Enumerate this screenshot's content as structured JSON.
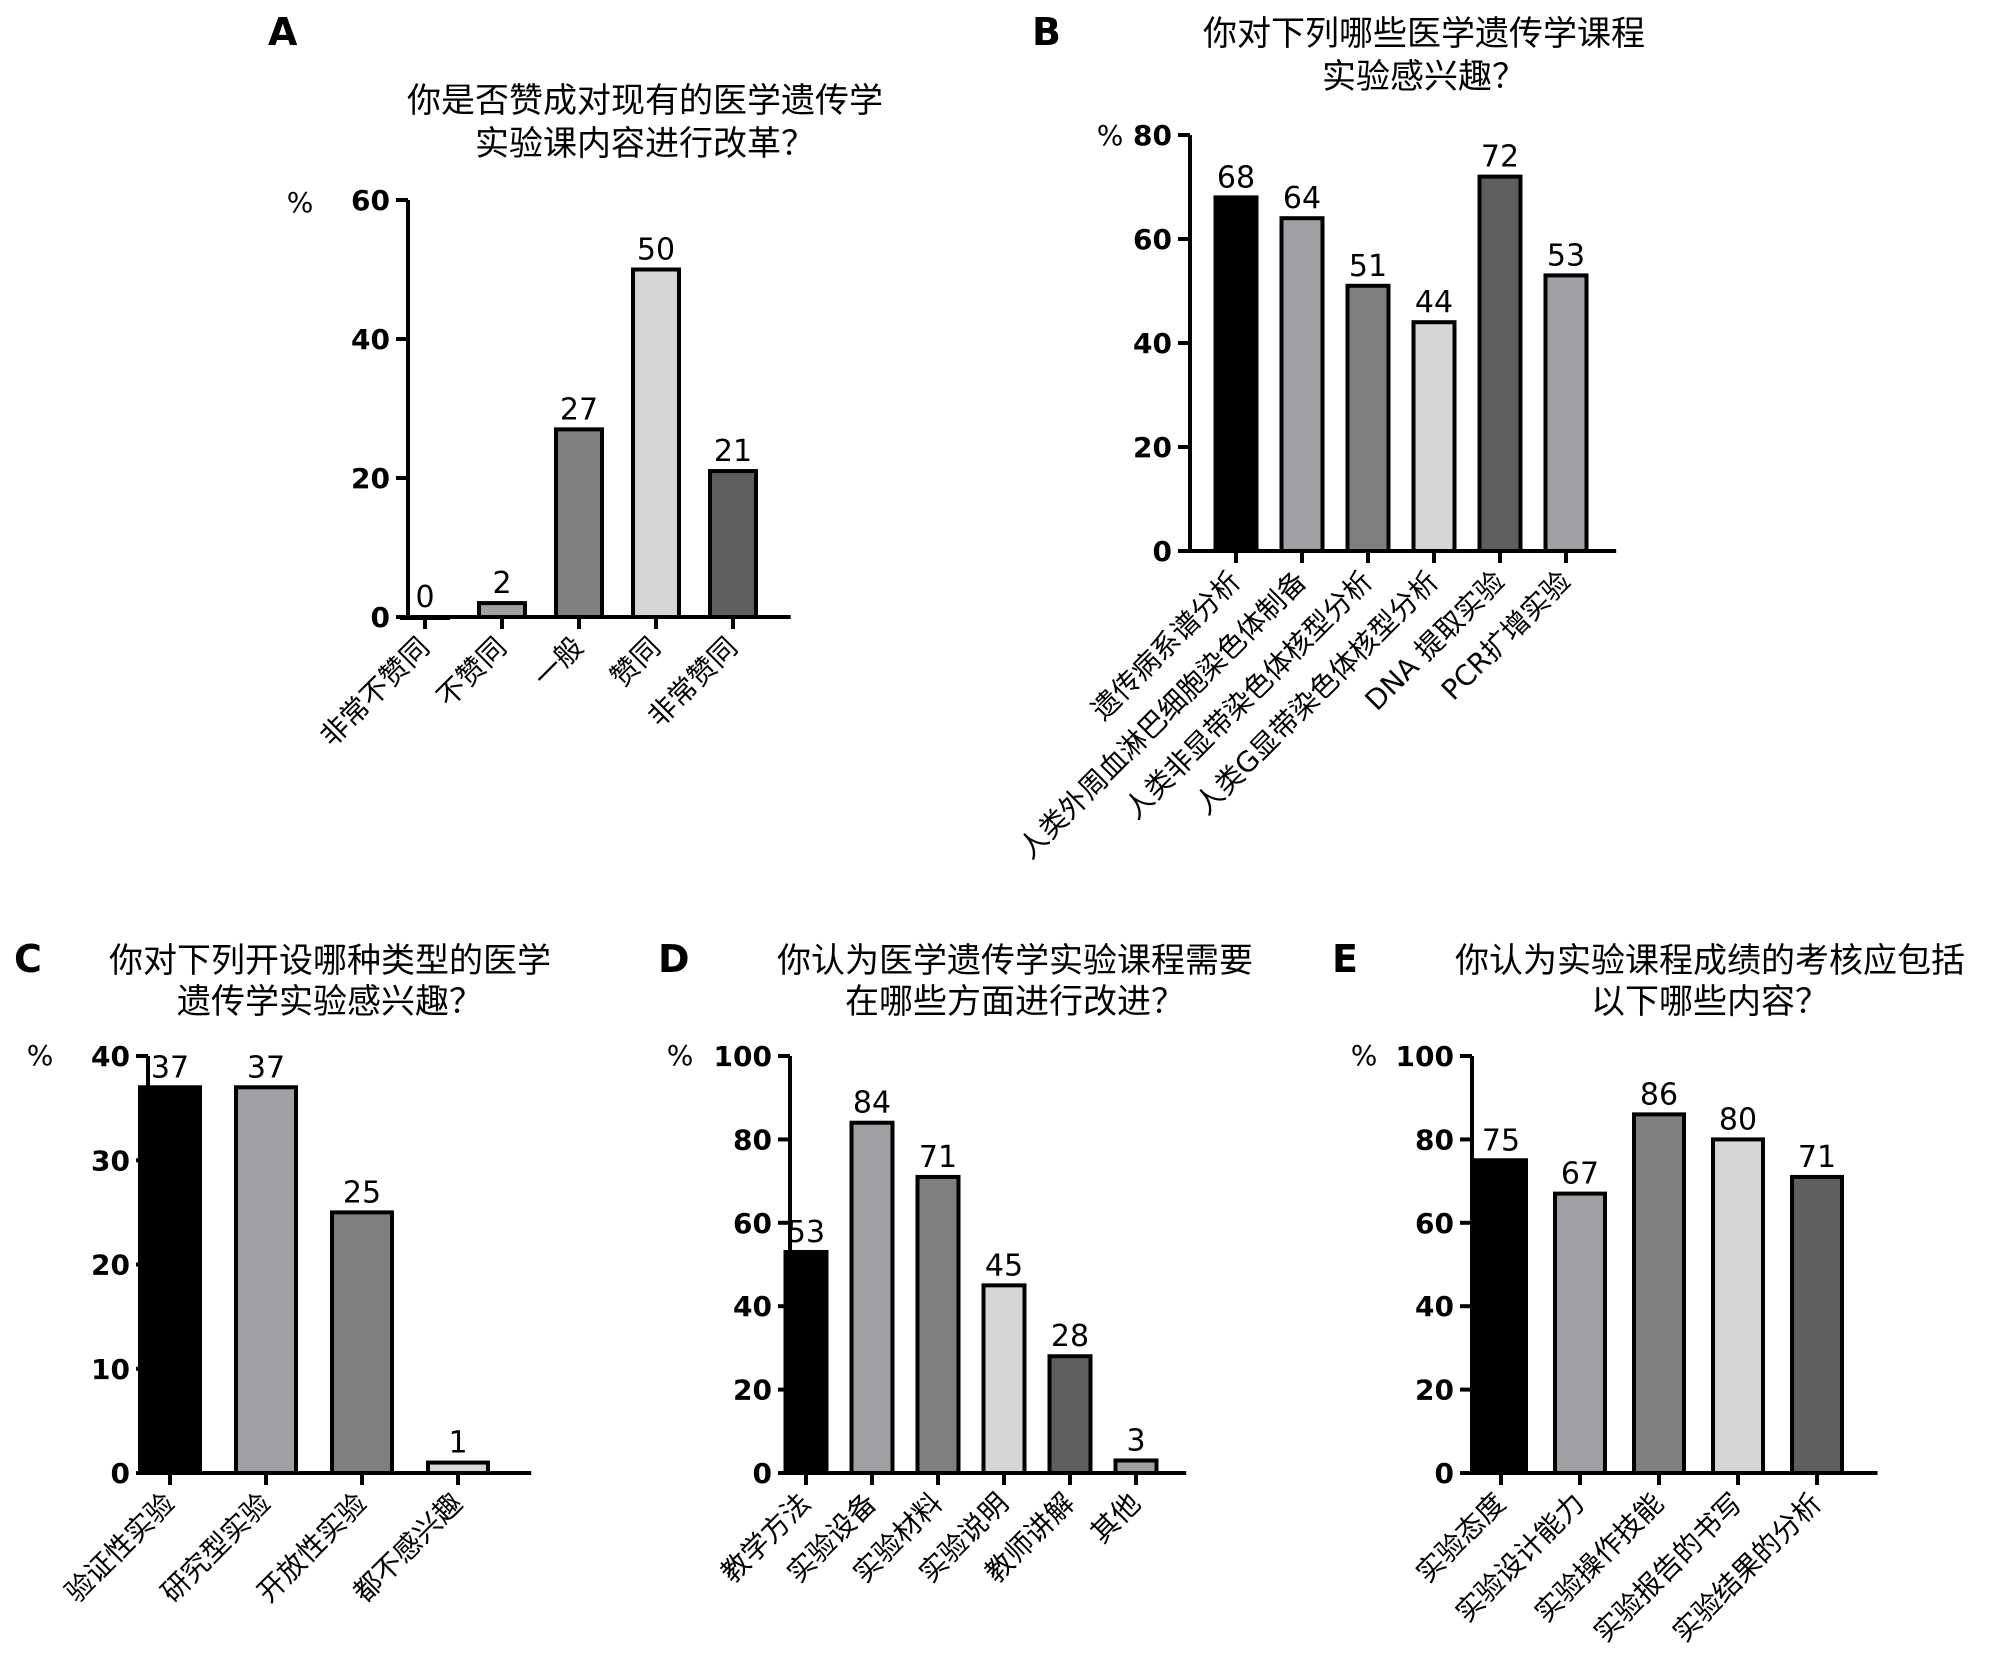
{
  "chart_data": [
    {
      "panel": "A",
      "type": "bar",
      "title": [
        "你是否赞成对现有的医学遗传学",
        "实验课内容进行改革？"
      ],
      "ylabel": "%",
      "ylim": [
        0,
        60
      ],
      "yticks": [
        0,
        20,
        40,
        60
      ],
      "categories": [
        "非常不赞同",
        "不赞同",
        "一般",
        "赞同",
        "非常赞同"
      ],
      "values": [
        0,
        2,
        27,
        50,
        21
      ],
      "colors": [
        "#000000",
        "#a0a0a4",
        "#7f7f7f",
        "#d6d6d6",
        "#5e5e5e"
      ]
    },
    {
      "panel": "B",
      "type": "bar",
      "title": [
        "你对下列哪些医学遗传学课程",
        "实验感兴趣？"
      ],
      "ylabel": "%",
      "ylim": [
        0,
        80
      ],
      "yticks": [
        0,
        20,
        40,
        60,
        80
      ],
      "categories": [
        "遗传病系谱分析",
        "人类外周血淋巴细胞染色体制备",
        "人类非显带染色体核型分析",
        "人类G显带染色体核型分析",
        "DNA 提取实验",
        "PCR扩增实验"
      ],
      "values": [
        68,
        64,
        51,
        44,
        72,
        53
      ],
      "colors": [
        "#000000",
        "#a0a0a4",
        "#7f7f7f",
        "#d6d6d6",
        "#5e5e5e",
        "#a0a0a4"
      ]
    },
    {
      "panel": "C",
      "type": "bar",
      "title": [
        "你对下列开设哪种类型的医学",
        "遗传学实验感兴趣？"
      ],
      "ylabel": "%",
      "ylim": [
        0,
        40
      ],
      "yticks": [
        0,
        10,
        20,
        30,
        40
      ],
      "categories": [
        "验证性实验",
        "研究型实验",
        "开放性实验",
        "都不感兴趣"
      ],
      "values": [
        37,
        37,
        25,
        1
      ],
      "colors": [
        "#000000",
        "#a0a0a4",
        "#7f7f7f",
        "#d6d6d6"
      ]
    },
    {
      "panel": "D",
      "type": "bar",
      "title": [
        "你认为医学遗传学实验课程需要",
        "在哪些方面进行改进？"
      ],
      "ylabel": "%",
      "ylim": [
        0,
        100
      ],
      "yticks": [
        0,
        20,
        40,
        60,
        80,
        100
      ],
      "categories": [
        "教学方法",
        "实验设备",
        "实验材料",
        "实验说明",
        "教师讲解",
        "其他"
      ],
      "values": [
        53,
        84,
        71,
        45,
        28,
        3
      ],
      "colors": [
        "#000000",
        "#a0a0a4",
        "#7f7f7f",
        "#d6d6d6",
        "#5e5e5e",
        "#a0a0a4"
      ]
    },
    {
      "panel": "E",
      "type": "bar",
      "title": [
        "你认为实验课程成绩的考核应包括",
        "以下哪些内容？"
      ],
      "ylabel": "%",
      "ylim": [
        0,
        100
      ],
      "yticks": [
        0,
        20,
        40,
        60,
        80,
        100
      ],
      "categories": [
        "实验态度",
        "实验设计能力",
        "实验操作技能",
        "实验报告的书写",
        "实验结果的分析"
      ],
      "values": [
        75,
        67,
        86,
        80,
        71
      ],
      "colors": [
        "#000000",
        "#a0a0a4",
        "#7f7f7f",
        "#d6d6d6",
        "#5e5e5e"
      ]
    }
  ]
}
